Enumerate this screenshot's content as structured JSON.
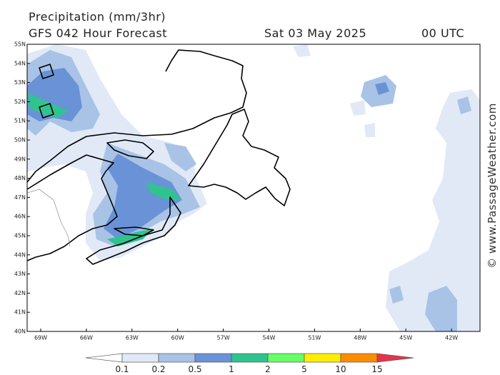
{
  "header": {
    "title": "Precipitation (mm/3hr)",
    "subtitle": "GFS 042 Hour Forecast",
    "date": "Sat 03 May 2025",
    "time": "00 UTC"
  },
  "latitude_labels": [
    "55N",
    "54N",
    "53N",
    "52N",
    "51N",
    "50N",
    "49N",
    "48N",
    "47N",
    "46N",
    "45N",
    "44N",
    "43N",
    "42N",
    "41N",
    "40N"
  ],
  "longitude_labels": [
    "69W",
    "66W",
    "63W",
    "60W",
    "57W",
    "54W",
    "51W",
    "48W",
    "45W",
    "42W"
  ],
  "colorbar": {
    "labels": [
      "0.1",
      "0.2",
      "0.5",
      "1",
      "2",
      "5",
      "10",
      "15"
    ],
    "colors": [
      "#ffffff",
      "#e1e9f6",
      "#a8c3e6",
      "#6a92d6",
      "#2fc48e",
      "#66ff66",
      "#ffee00",
      "#ff8c00",
      "#e8324a"
    ]
  },
  "watermark": "© www.PassageWeather.com"
}
